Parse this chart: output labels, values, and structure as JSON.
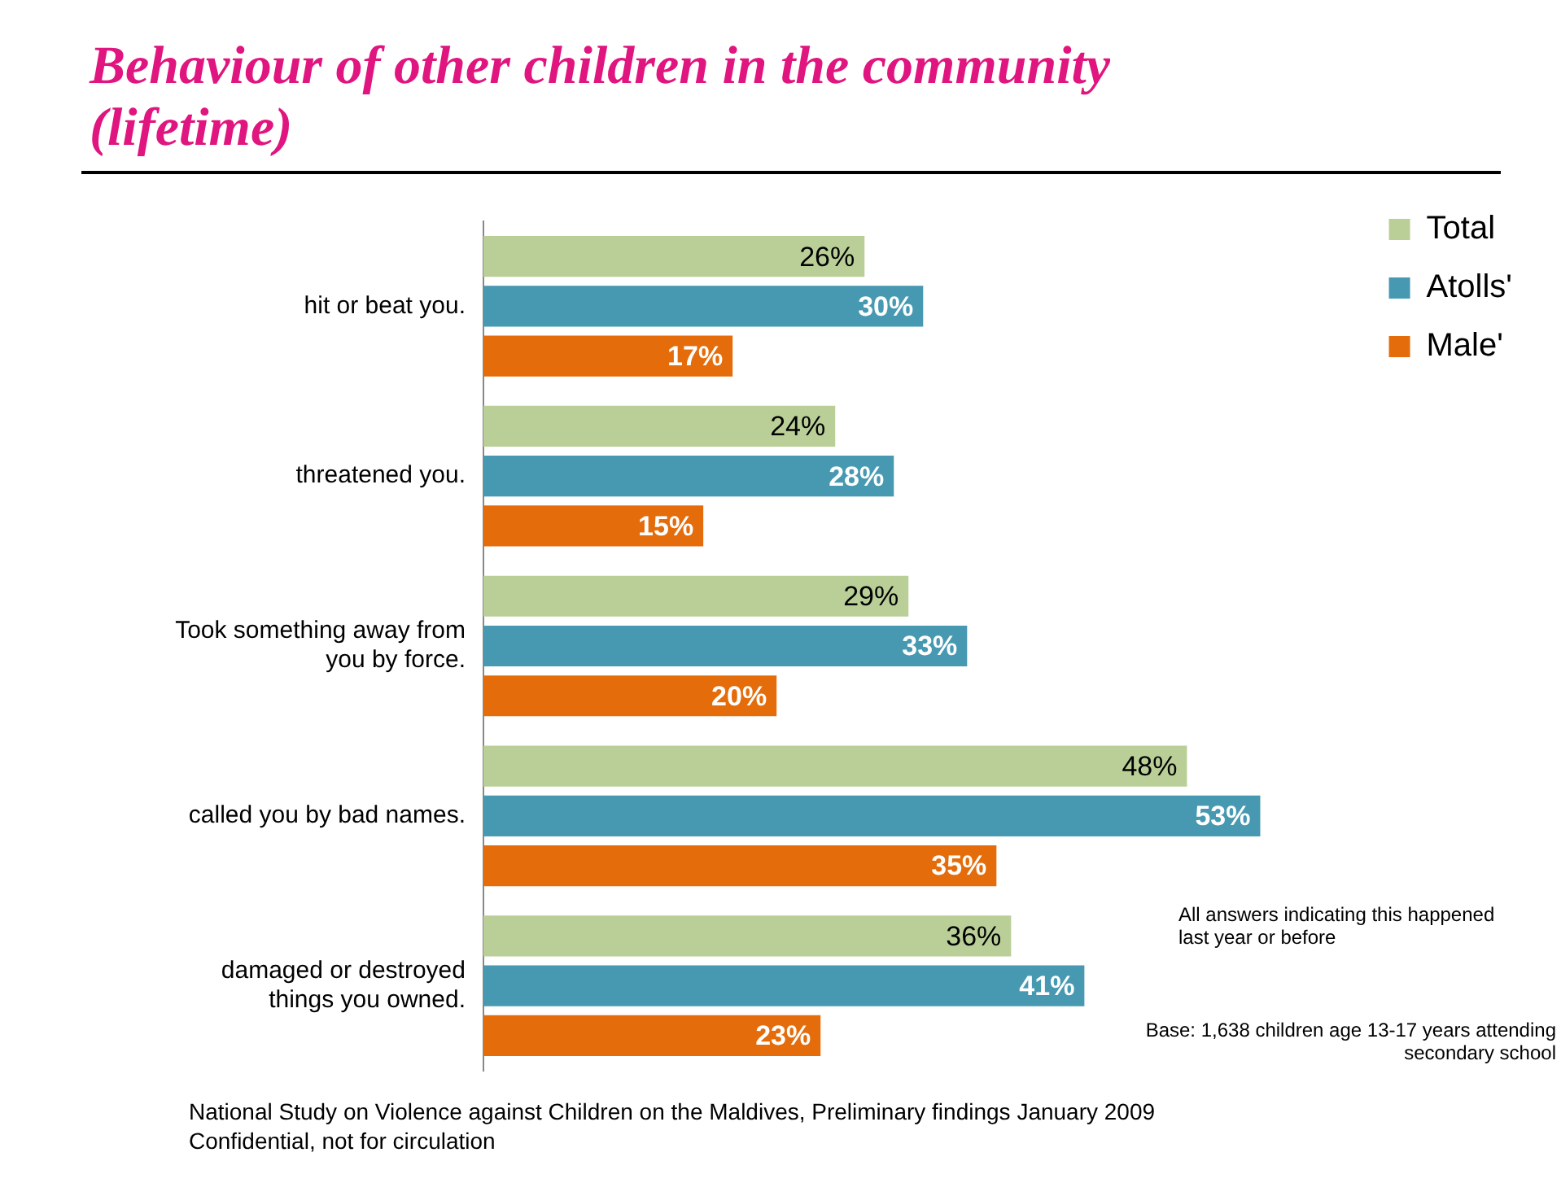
{
  "chart_data": {
    "type": "bar",
    "orientation": "horizontal",
    "title": "Behaviour of other children in the community (lifetime)",
    "categories": [
      "hit or beat you.",
      "threatened you.",
      "Took something away from you by force.",
      "called you by bad names.",
      "damaged or destroyed things you owned."
    ],
    "series": [
      {
        "name": "Total",
        "color": "#bacf98",
        "values": [
          26,
          24,
          29,
          48,
          36
        ],
        "value_labels": [
          "26%",
          "24%",
          "29%",
          "48%",
          "36%"
        ]
      },
      {
        "name": "Atolls'",
        "color": "#4699b1",
        "values": [
          30,
          28,
          33,
          53,
          41
        ],
        "value_labels": [
          "30%",
          "28%",
          "33%",
          "53%",
          "41%"
        ]
      },
      {
        "name": "Male'",
        "color": "#e46c0a",
        "values": [
          17,
          15,
          20,
          35,
          23
        ],
        "value_labels": [
          "17%",
          "15%",
          "20%",
          "35%",
          "23%"
        ]
      }
    ],
    "legend": "right",
    "annotations": [
      "All answers indicating this happened last year or before",
      "Base: 1,638 children age 13-17 years attending secondary school",
      "National Study on Violence against Children on the Maldives, Preliminary findings January 2009",
      "Confidential, not for circulation"
    ]
  }
}
